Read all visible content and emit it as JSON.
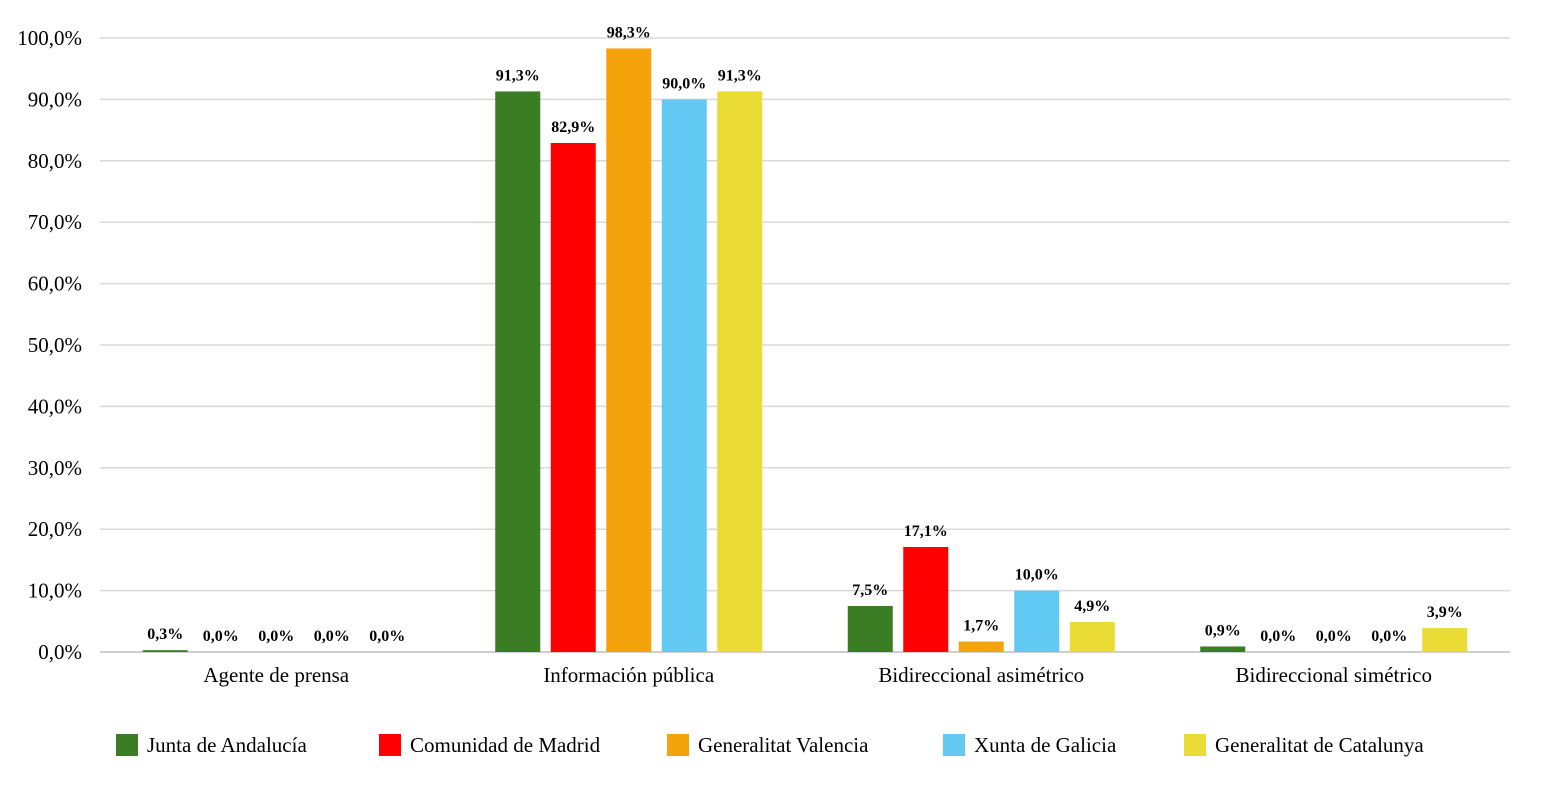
{
  "chart_data": {
    "type": "bar",
    "title": "",
    "xlabel": "",
    "ylabel": "",
    "ylim": [
      0,
      100
    ],
    "yticks": [
      "0,0%",
      "10,0%",
      "20,0%",
      "30,0%",
      "40,0%",
      "50,0%",
      "60,0%",
      "70,0%",
      "80,0%",
      "90,0%",
      "100,0%"
    ],
    "categories": [
      "Agente de prensa",
      "Información pública",
      "Bidireccional asimétrico",
      "Bidireccional simétrico"
    ],
    "series": [
      {
        "name": "Junta de Andalucía",
        "color": "#3a7d24",
        "values": [
          0.3,
          91.3,
          7.5,
          0.9
        ],
        "labels": [
          "0,3%",
          "91,3%",
          "7,5%",
          "0,9%"
        ]
      },
      {
        "name": "Comunidad de Madrid",
        "color": "#ff0000",
        "values": [
          0.0,
          82.9,
          17.1,
          0.0
        ],
        "labels": [
          "0,0%",
          "82,9%",
          "17,1%",
          "0,0%"
        ]
      },
      {
        "name": "Generalitat Valencia",
        "color": "#f5a30a",
        "values": [
          0.0,
          98.3,
          1.7,
          0.0
        ],
        "labels": [
          "0,0%",
          "98,3%",
          "1,7%",
          "0,0%"
        ]
      },
      {
        "name": "Xunta de Galicia",
        "color": "#62c9f2",
        "values": [
          0.0,
          90.0,
          10.0,
          0.0
        ],
        "labels": [
          "0,0%",
          "90,0%",
          "10,0%",
          "0,0%"
        ]
      },
      {
        "name": "Generalitat de Catalunya",
        "color": "#ebdc35",
        "values": [
          0.0,
          91.3,
          4.9,
          3.9
        ],
        "labels": [
          "0,0%",
          "91,3%",
          "4,9%",
          "3,9%"
        ]
      }
    ],
    "legend_position": "bottom",
    "grid": true
  }
}
